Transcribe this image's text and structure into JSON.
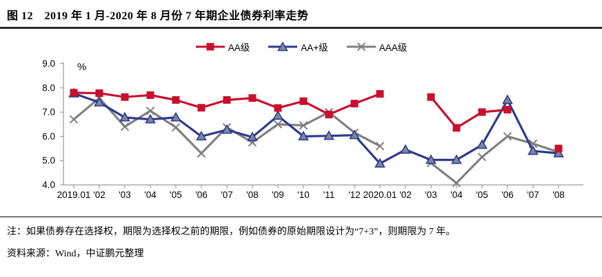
{
  "title": "图 12　2019 年 1 月-2020 年 8 月份 7 年期企业债券利率走势",
  "footnote": "注：如果债券存在选择权，期限为选择权之前的期限，例如债券的原始期限设计为“7+3”，则期限为 7 年。",
  "source": "资料来源：Wind，中证鹏元整理",
  "colors": {
    "aa_red": "#C8102E",
    "aap_blue": "#2D3A8C",
    "aap_triangle_fill": "#7C86A0",
    "aaa_gray": "#7F7F7F",
    "axis": "#9a9a9a",
    "title_rule": "#2b2b2b"
  },
  "chart_data": {
    "type": "line",
    "title": "图 12  2019年1月-2020年8月份7年期企业债券利率走势",
    "unit_label": "%",
    "xlabel": "",
    "ylabel": "%",
    "ylim": [
      4.0,
      9.0
    ],
    "ytick_step": 1.0,
    "ytick_labels": [
      "4.0",
      "5.0",
      "6.0",
      "7.0",
      "8.0",
      "9.0"
    ],
    "grid": false,
    "legend_position": "top",
    "categories": [
      "2019.01",
      "'02",
      "'03",
      "'04",
      "'05",
      "'06",
      "'07",
      "'08",
      "'09",
      "'10",
      "'11",
      "'12",
      "2020.01",
      "'02",
      "'03",
      "'04",
      "'05",
      "'06",
      "'07",
      "'08"
    ],
    "series": [
      {
        "name": "AAA级",
        "marker": "x",
        "color": "#7F7F7F",
        "values": [
          6.7,
          7.58,
          6.4,
          7.05,
          6.37,
          5.3,
          6.37,
          5.75,
          6.5,
          6.45,
          7.0,
          6.15,
          5.6,
          null,
          4.9,
          4.08,
          5.15,
          6.0,
          5.7,
          5.35
        ]
      },
      {
        "name": "AA+级",
        "marker": "triangle",
        "color": "#2D3A8C",
        "marker_fill": "#7C86A0",
        "values": [
          7.77,
          7.4,
          6.78,
          6.7,
          6.78,
          6.0,
          6.27,
          5.97,
          6.85,
          6.0,
          6.02,
          6.05,
          4.88,
          5.45,
          5.03,
          5.03,
          5.65,
          7.5,
          5.4,
          5.3
        ]
      },
      {
        "name": "AA级",
        "marker": "square",
        "color": "#C8102E",
        "values": [
          7.8,
          7.78,
          7.62,
          7.7,
          7.5,
          7.18,
          7.5,
          7.58,
          7.17,
          7.45,
          6.9,
          7.35,
          7.75,
          null,
          7.62,
          6.35,
          7.0,
          7.1,
          null,
          5.5
        ]
      }
    ],
    "legend_order": [
      "AA级",
      "AA+级",
      "AAA级"
    ]
  }
}
